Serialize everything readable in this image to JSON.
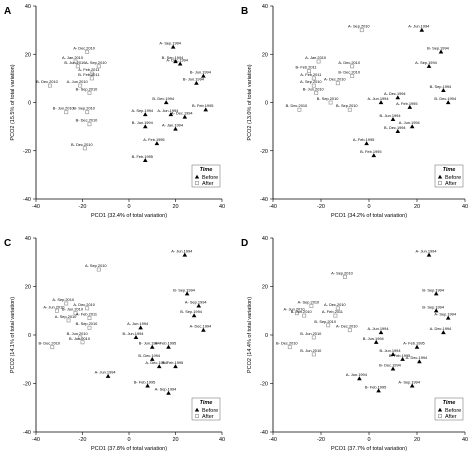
{
  "chart_data": [
    {
      "type": "scatter",
      "panel": "A",
      "xlabel": "PCO1 (32.4% of total variation)",
      "ylabel": "PCO2 (15.5% of total variation)",
      "xlim": [
        -40,
        40
      ],
      "ylim": [
        -40,
        40
      ],
      "xticks": [
        -40,
        -20,
        0,
        20,
        40
      ],
      "yticks": [
        -40,
        -20,
        0,
        20,
        40
      ],
      "legend": {
        "title": "Time",
        "before": "Before",
        "after": "After",
        "position": "bottom-right"
      },
      "points": [
        {
          "label": "A- Dec.2010",
          "x": -18,
          "y": 21,
          "group": "after"
        },
        {
          "label": "A- Jan.2010",
          "x": -23,
          "y": 17,
          "group": "after"
        },
        {
          "label": "B- Jun.2010",
          "x": -22,
          "y": 15,
          "group": "after"
        },
        {
          "label": "A- Feb.2011",
          "x": -16,
          "y": 12,
          "group": "after"
        },
        {
          "label": "A- Sep.2010",
          "x": -13,
          "y": 15,
          "group": "after"
        },
        {
          "label": "B- Feb.2011",
          "x": -16,
          "y": 10,
          "group": "after"
        },
        {
          "label": "B- Dec.2010",
          "x": -34,
          "y": 7,
          "group": "after"
        },
        {
          "label": "A- Jun.2010",
          "x": -21,
          "y": 7,
          "group": "after"
        },
        {
          "label": "B- Sep.2010",
          "x": -17,
          "y": 4,
          "group": "after"
        },
        {
          "label": "B- Jun.2010",
          "x": -27,
          "y": -4,
          "group": "after"
        },
        {
          "label": "B- Sep.2010",
          "x": -18,
          "y": -4,
          "group": "after"
        },
        {
          "label": "B- Dec.2010",
          "x": -17,
          "y": -9,
          "group": "after"
        },
        {
          "label": "B- Dec.2010",
          "x": -19,
          "y": -19,
          "group": "after"
        },
        {
          "label": "A- Sep.1994",
          "x": 19,
          "y": 23,
          "group": "before"
        },
        {
          "label": "B- Sep.1994",
          "x": 20,
          "y": 17,
          "group": "before"
        },
        {
          "label": "A- Dec.1994",
          "x": 22,
          "y": 16,
          "group": "before"
        },
        {
          "label": "B- Jun.1994",
          "x": 32,
          "y": 11,
          "group": "before"
        },
        {
          "label": "B- Jun.1994",
          "x": 29,
          "y": 8,
          "group": "before"
        },
        {
          "label": "B- Dec.1994",
          "x": 16,
          "y": 0,
          "group": "before"
        },
        {
          "label": "B- Feb.1995",
          "x": 33,
          "y": -3,
          "group": "before"
        },
        {
          "label": "A- Sep.1994",
          "x": 7,
          "y": -5,
          "group": "before"
        },
        {
          "label": "A- Jun.1994",
          "x": 18,
          "y": -5,
          "group": "before"
        },
        {
          "label": "A- Dec.1994",
          "x": 24,
          "y": -6,
          "group": "before"
        },
        {
          "label": "B- Jun.1994",
          "x": 7,
          "y": -10,
          "group": "before"
        },
        {
          "label": "A- Jan.1994",
          "x": 20,
          "y": -11,
          "group": "before"
        },
        {
          "label": "A- Feb.1995",
          "x": 12,
          "y": -17,
          "group": "before"
        },
        {
          "label": "B- Feb.1995",
          "x": 7,
          "y": -24,
          "group": "before"
        }
      ]
    },
    {
      "type": "scatter",
      "panel": "B",
      "xlabel": "PCO1 (34.2% of total variation)",
      "ylabel": "PCO2 (13.0% of total variation)",
      "xlim": [
        -40,
        40
      ],
      "ylim": [
        -40,
        40
      ],
      "xticks": [
        -40,
        -20,
        0,
        20,
        40
      ],
      "yticks": [
        -40,
        -20,
        0,
        20,
        40
      ],
      "legend": {
        "title": "Time",
        "before": "Before",
        "after": "After",
        "position": "bottom-right"
      },
      "points": [
        {
          "label": "A- Sep.2010",
          "x": -3,
          "y": 30,
          "group": "after"
        },
        {
          "label": "A- Jan.2010",
          "x": -21,
          "y": 17,
          "group": "after"
        },
        {
          "label": "A- Dec.2010",
          "x": -7,
          "y": 15,
          "group": "after"
        },
        {
          "label": "B- Feb.2011",
          "x": -25,
          "y": 13,
          "group": "after"
        },
        {
          "label": "A- Feb.2011",
          "x": -23,
          "y": 10,
          "group": "after"
        },
        {
          "label": "B- Dec.2010",
          "x": -7,
          "y": 11,
          "group": "after"
        },
        {
          "label": "A- Dec.2010",
          "x": -13,
          "y": 8,
          "group": "after"
        },
        {
          "label": "A- Sep.2010",
          "x": -23,
          "y": 7,
          "group": "after"
        },
        {
          "label": "B- Jun.2010",
          "x": -22,
          "y": 4,
          "group": "after"
        },
        {
          "label": "B- Sep.2010",
          "x": -16,
          "y": 0,
          "group": "after"
        },
        {
          "label": "B- Dec.2010",
          "x": -29,
          "y": -3,
          "group": "after"
        },
        {
          "label": "B- Sep.2010",
          "x": -8,
          "y": -3,
          "group": "after"
        },
        {
          "label": "A- Jun.1994",
          "x": 22,
          "y": 30,
          "group": "before"
        },
        {
          "label": "B- Sep.1994",
          "x": 30,
          "y": 21,
          "group": "before"
        },
        {
          "label": "A- Sep.1994",
          "x": 25,
          "y": 15,
          "group": "before"
        },
        {
          "label": "B- Sep.1994",
          "x": 31,
          "y": 5,
          "group": "before"
        },
        {
          "label": "A- Jun.1994",
          "x": 5,
          "y": 0,
          "group": "before"
        },
        {
          "label": "A- Dec.1994",
          "x": 12,
          "y": 2,
          "group": "before"
        },
        {
          "label": "A- Feb.1995",
          "x": 17,
          "y": -2,
          "group": "before"
        },
        {
          "label": "B- Dec.1994",
          "x": 33,
          "y": 0,
          "group": "before"
        },
        {
          "label": "B- Jun.1994",
          "x": 10,
          "y": -7,
          "group": "before"
        },
        {
          "label": "A- Jun.1994",
          "x": 18,
          "y": -10,
          "group": "before"
        },
        {
          "label": "B- Dec.1994",
          "x": 12,
          "y": -12,
          "group": "before"
        },
        {
          "label": "A- Feb.1995",
          "x": -1,
          "y": -17,
          "group": "before"
        },
        {
          "label": "B- Feb.1995",
          "x": 2,
          "y": -22,
          "group": "before"
        }
      ]
    },
    {
      "type": "scatter",
      "panel": "C",
      "xlabel": "PCO1 (37.8% of total variation)",
      "ylabel": "PCO2 (14.1% of total variation)",
      "xlim": [
        -40,
        40
      ],
      "ylim": [
        -40,
        40
      ],
      "xticks": [
        -40,
        -20,
        0,
        20,
        40
      ],
      "yticks": [
        -40,
        -20,
        0,
        20,
        40
      ],
      "legend": {
        "title": "Time",
        "before": "Before",
        "after": "After",
        "position": "bottom-right"
      },
      "points": [
        {
          "label": "A- Jun.1994",
          "x": 24,
          "y": 33,
          "group": "before"
        },
        {
          "label": "A- Sep.2010",
          "x": -13,
          "y": 27,
          "group": "after"
        },
        {
          "label": "A- Sep.2010",
          "x": -27,
          "y": 13,
          "group": "after"
        },
        {
          "label": "A- Jun.2010",
          "x": -31,
          "y": 10,
          "group": "after"
        },
        {
          "label": "B- Jun.2010",
          "x": -23,
          "y": 9,
          "group": "after"
        },
        {
          "label": "A- Dec.2010",
          "x": -18,
          "y": 11,
          "group": "after"
        },
        {
          "label": "A- Feb.2011",
          "x": -17,
          "y": 7,
          "group": "after"
        },
        {
          "label": "A- Sep.2010",
          "x": -26,
          "y": 6,
          "group": "after"
        },
        {
          "label": "B- Sep.2010",
          "x": -17,
          "y": 3,
          "group": "after"
        },
        {
          "label": "B- Jun.2010",
          "x": -21,
          "y": -1,
          "group": "after"
        },
        {
          "label": "B- Dec.2010",
          "x": -33,
          "y": -5,
          "group": "after"
        },
        {
          "label": "B- Jun.2010",
          "x": -20,
          "y": -3,
          "group": "after"
        },
        {
          "label": "B- Sep.1994",
          "x": 25,
          "y": 17,
          "group": "before"
        },
        {
          "label": "A- Sep.1994",
          "x": 30,
          "y": 12,
          "group": "before"
        },
        {
          "label": "B- Sep.1994",
          "x": 28,
          "y": 8,
          "group": "before"
        },
        {
          "label": "A- Jun.1994",
          "x": 5,
          "y": 3,
          "group": "before"
        },
        {
          "label": "A- Dec.1994",
          "x": 32,
          "y": 2,
          "group": "before"
        },
        {
          "label": "B- Jun.1994",
          "x": 3,
          "y": -1,
          "group": "before"
        },
        {
          "label": "B- Jun.1994",
          "x": 10,
          "y": -5,
          "group": "before"
        },
        {
          "label": "A- Feb.1995",
          "x": 17,
          "y": -5,
          "group": "before"
        },
        {
          "label": "B- Dec.1994",
          "x": 10,
          "y": -10,
          "group": "before"
        },
        {
          "label": "A- Dec.1994",
          "x": 13,
          "y": -13,
          "group": "before"
        },
        {
          "label": "B- Feb.1995",
          "x": 20,
          "y": -13,
          "group": "before"
        },
        {
          "label": "A- Jun.1994",
          "x": -9,
          "y": -17,
          "group": "before"
        },
        {
          "label": "B- Feb.1995",
          "x": 8,
          "y": -21,
          "group": "before"
        },
        {
          "label": "A- Sep.1994",
          "x": 17,
          "y": -24,
          "group": "before"
        }
      ]
    },
    {
      "type": "scatter",
      "panel": "D",
      "xlabel": "PCO1 (37.7% of total variation)",
      "ylabel": "PCO2 (14.4% of total variation)",
      "xlim": [
        -40,
        40
      ],
      "ylim": [
        -40,
        40
      ],
      "xticks": [
        -40,
        -20,
        0,
        20,
        40
      ],
      "yticks": [
        -40,
        -20,
        0,
        20,
        40
      ],
      "legend": {
        "title": "Time",
        "before": "Before",
        "after": "After",
        "position": "bottom-right"
      },
      "points": [
        {
          "label": "A- Jun.1994",
          "x": 25,
          "y": 33,
          "group": "before"
        },
        {
          "label": "A- Sep.2010",
          "x": -10,
          "y": 24,
          "group": "after"
        },
        {
          "label": "A- Sep.2010",
          "x": -24,
          "y": 12,
          "group": "after"
        },
        {
          "label": "A- Dec.2010",
          "x": -13,
          "y": 11,
          "group": "after"
        },
        {
          "label": "A- Jun.2010",
          "x": -30,
          "y": 9,
          "group": "after"
        },
        {
          "label": "B- Jun.2010",
          "x": -27,
          "y": 8,
          "group": "after"
        },
        {
          "label": "A- Feb.2011",
          "x": -14,
          "y": 8,
          "group": "after"
        },
        {
          "label": "B- Sep.2010",
          "x": -17,
          "y": 4,
          "group": "after"
        },
        {
          "label": "A- Dec.2010",
          "x": -8,
          "y": 2,
          "group": "after"
        },
        {
          "label": "B- Jun.2010",
          "x": -23,
          "y": -1,
          "group": "after"
        },
        {
          "label": "B- Dec.2010",
          "x": -33,
          "y": -5,
          "group": "after"
        },
        {
          "label": "B- Jun.2010",
          "x": -23,
          "y": -8,
          "group": "after"
        },
        {
          "label": "B- Sep.1994",
          "x": 28,
          "y": 17,
          "group": "before"
        },
        {
          "label": "B- Sep.1994",
          "x": 28,
          "y": 10,
          "group": "before"
        },
        {
          "label": "A- Sep.1994",
          "x": 33,
          "y": 7,
          "group": "before"
        },
        {
          "label": "A- Jun.1994",
          "x": 5,
          "y": 1,
          "group": "before"
        },
        {
          "label": "A- Dec.1994",
          "x": 31,
          "y": 1,
          "group": "before"
        },
        {
          "label": "B- Jun.1994",
          "x": 3,
          "y": -3,
          "group": "before"
        },
        {
          "label": "A- Feb.1995",
          "x": 20,
          "y": -5,
          "group": "before"
        },
        {
          "label": "B- Jun.1994",
          "x": 10,
          "y": -8,
          "group": "before"
        },
        {
          "label": "B- Feb.1995",
          "x": 14,
          "y": -10,
          "group": "before"
        },
        {
          "label": "A- Dec.1994",
          "x": 21,
          "y": -11,
          "group": "before"
        },
        {
          "label": "B- Dec.1994",
          "x": 10,
          "y": -14,
          "group": "before"
        },
        {
          "label": "A- Jun.1994",
          "x": -4,
          "y": -18,
          "group": "before"
        },
        {
          "label": "B- Feb.1995",
          "x": 4,
          "y": -23,
          "group": "before"
        },
        {
          "label": "A- Sep.1994",
          "x": 18,
          "y": -21,
          "group": "before"
        }
      ]
    }
  ],
  "colors": {
    "before": "#000000",
    "after": "#9a9a9a",
    "axis": "#000000"
  },
  "marker_shapes": {
    "before": "filled-triangle",
    "after": "open-square"
  }
}
